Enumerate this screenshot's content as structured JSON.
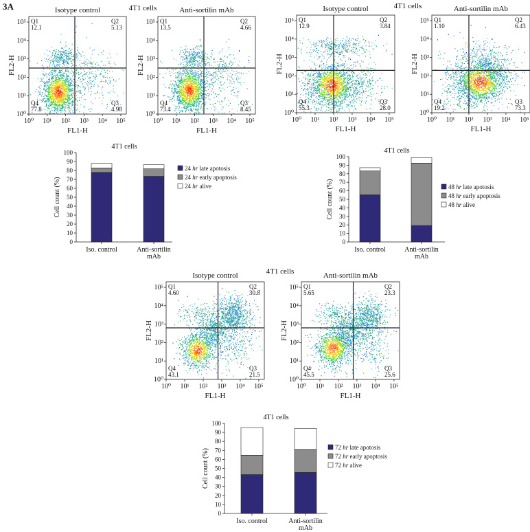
{
  "figure": {
    "label": "3A"
  },
  "flow_groups": [
    {
      "id": "24h",
      "title": "4T1 cells",
      "xlabel": "FL1-H",
      "ylabel": "FL2-H",
      "ticks": [
        "10⁰",
        "10¹",
        "10²",
        "10³",
        "10⁴",
        "10⁵"
      ],
      "panels": [
        {
          "title": "Isotype control",
          "q1": {
            "name": "Q1",
            "value": "12.1"
          },
          "q2": {
            "name": "Q2",
            "value": "5.13"
          },
          "q3": {
            "name": "Q3",
            "value": "4.98"
          },
          "q4": {
            "name": "Q4",
            "value": "77.8"
          },
          "gate_x": 2.5,
          "gate_y": 2.5,
          "pattern": "24-iso"
        },
        {
          "title": "Anti-sortilin mAb",
          "q1": {
            "name": "Q1",
            "value": "13.5"
          },
          "q2": {
            "name": "Q2",
            "value": "4.66"
          },
          "q3": {
            "name": "Q3",
            "value": "8.45"
          },
          "q4": {
            "name": "Q4",
            "value": "73.4"
          },
          "gate_x": 2.5,
          "gate_y": 2.5,
          "pattern": "24-anti"
        }
      ]
    },
    {
      "id": "48h",
      "title": "4T1 cells",
      "xlabel": "FL1-H",
      "ylabel": "FL2-H",
      "ticks": [
        "10⁰",
        "10¹",
        "10²",
        "10³",
        "10⁴",
        "10⁵"
      ],
      "panels": [
        {
          "title": "Isotype control",
          "q1": {
            "name": "Q1",
            "value": "12.9"
          },
          "q2": {
            "name": "Q2",
            "value": "3.84"
          },
          "q3": {
            "name": "Q3",
            "value": "28.0"
          },
          "q4": {
            "name": "Q4",
            "value": "55.3"
          },
          "gate_x": 2.0,
          "gate_y": 2.3,
          "pattern": "48-iso"
        },
        {
          "title": "Anti-sortilin mAb",
          "q1": {
            "name": "Q1",
            "value": "1.10"
          },
          "q2": {
            "name": "Q2",
            "value": "6.43"
          },
          "q3": {
            "name": "Q3",
            "value": "73.3"
          },
          "q4": {
            "name": "Q4",
            "value": "19.2"
          },
          "gate_x": 2.0,
          "gate_y": 2.3,
          "pattern": "48-anti"
        }
      ]
    },
    {
      "id": "72h",
      "title": "4T1 cells",
      "xlabel": "FL1-H",
      "ylabel": "FL2-H",
      "ticks": [
        "10⁰",
        "10¹",
        "10²",
        "10³",
        "10⁴",
        "10⁵"
      ],
      "panels": [
        {
          "title": "Isotype control",
          "q1": {
            "name": "Q1",
            "value": "4.60"
          },
          "q2": {
            "name": "Q2",
            "value": "30.8"
          },
          "q3": {
            "name": "Q3",
            "value": "21.5"
          },
          "q4": {
            "name": "Q4",
            "value": "43.1"
          },
          "gate_x": 2.8,
          "gate_y": 2.8,
          "pattern": "72-iso"
        },
        {
          "title": "Anti-sortilin mAb",
          "q1": {
            "name": "Q1",
            "value": "5.65"
          },
          "q2": {
            "name": "Q2",
            "value": "23.3"
          },
          "q3": {
            "name": "Q3",
            "value": "25.6"
          },
          "q4": {
            "name": "Q4",
            "value": "45.5"
          },
          "gate_x": 2.8,
          "gate_y": 2.8,
          "pattern": "72-anti"
        }
      ]
    }
  ],
  "chart_data": [
    {
      "type": "bar",
      "stacked": true,
      "title": "4T1 cells",
      "ylabel": "Cell count (%)",
      "ylim": [
        0,
        100
      ],
      "yticks": [
        0,
        10,
        20,
        30,
        40,
        50,
        60,
        70,
        80,
        90,
        100
      ],
      "categories": [
        [
          "Iso. control"
        ],
        [
          "Anti-sortilin",
          "mAb"
        ]
      ],
      "series": [
        {
          "name": "24 hr late apotosis",
          "hr": "24",
          "hr_label": "hr",
          "rest": "late apotosis",
          "color": "#2e2a78",
          "values": [
            77.8,
            73.4
          ]
        },
        {
          "name": "24 hr early apoptosis",
          "hr": "24",
          "hr_label": "hr",
          "rest": "early apoptosis",
          "color": "#8c8c8c",
          "values": [
            4.98,
            8.45
          ]
        },
        {
          "name": "24 hr alive",
          "hr": "24",
          "hr_label": "hr",
          "rest": "alive",
          "color": "#ffffff",
          "values": [
            5.13,
            4.66
          ]
        }
      ]
    },
    {
      "type": "bar",
      "stacked": true,
      "title": "4T1 cells",
      "ylabel": "Cell count (%)",
      "ylim": [
        0,
        100
      ],
      "yticks": [
        0,
        10,
        20,
        30,
        40,
        50,
        60,
        70,
        80,
        90,
        100
      ],
      "categories": [
        [
          "Iso. control"
        ],
        [
          "Anti-sortilin",
          "mAb"
        ]
      ],
      "series": [
        {
          "name": "48 hr late apotosis",
          "hr": "48",
          "hr_label": "hr",
          "rest": "late apotosis",
          "color": "#2e2a78",
          "values": [
            55.3,
            19.2
          ]
        },
        {
          "name": "48 hr early apoptosis",
          "hr": "48",
          "hr_label": "hr",
          "rest": "early apoptosis",
          "color": "#8c8c8c",
          "values": [
            28.0,
            73.3
          ]
        },
        {
          "name": "48 hr alive",
          "hr": "48",
          "hr_label": "hr",
          "rest": "alive",
          "color": "#ffffff",
          "values": [
            3.84,
            6.43
          ]
        }
      ]
    },
    {
      "type": "bar",
      "stacked": true,
      "title": "4T1 cells",
      "ylabel": "Cell count (%)",
      "ylim": [
        0,
        100
      ],
      "yticks": [
        0,
        10,
        20,
        30,
        40,
        50,
        60,
        70,
        80,
        90,
        100
      ],
      "categories": [
        [
          "Iso. control"
        ],
        [
          "Anti-sortilin",
          "mAb"
        ]
      ],
      "series": [
        {
          "name": "72 hr late apotosis",
          "hr": "72",
          "hr_label": "hr",
          "rest": "late apotosis",
          "color": "#2e2a78",
          "values": [
            43.1,
            45.5
          ]
        },
        {
          "name": "72 hr early apoptosis",
          "hr": "72",
          "hr_label": "hr",
          "rest": "early apoptosis",
          "color": "#8c8c8c",
          "values": [
            21.5,
            25.6
          ]
        },
        {
          "name": "72 hr alive",
          "hr": "72",
          "hr_label": "hr",
          "rest": "alive",
          "color": "#ffffff",
          "values": [
            30.8,
            23.3
          ]
        }
      ]
    }
  ]
}
